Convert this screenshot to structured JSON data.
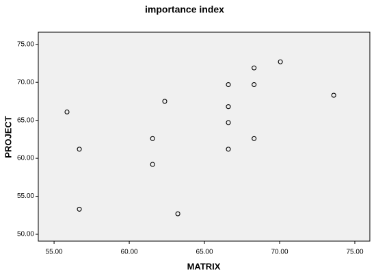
{
  "chart_data": {
    "type": "scatter",
    "title": "importance index",
    "x_label": "MATRIX",
    "y_label": "PROJECT",
    "x": [
      55.86,
      56.68,
      56.68,
      61.55,
      61.55,
      62.36,
      63.23,
      66.59,
      66.59,
      66.59,
      66.59,
      68.3,
      68.3,
      68.3,
      70.05,
      73.6
    ],
    "series": [
      {
        "color": "#000000",
        "values": [
          66.1,
          61.2,
          53.3,
          62.6,
          59.2,
          67.5,
          52.7,
          69.7,
          66.8,
          64.7,
          61.2,
          71.9,
          69.7,
          62.6,
          72.7,
          68.3
        ]
      }
    ],
    "xlim": [
      53.95,
      76
    ],
    "ylim": [
      49.1,
      76.6
    ],
    "xticks": [
      {
        "value": 55,
        "label": "55.00"
      },
      {
        "value": 60,
        "label": "60.00"
      },
      {
        "value": 65,
        "label": "65.00"
      },
      {
        "value": 70,
        "label": "70.00"
      },
      {
        "value": 75,
        "label": "75.00"
      }
    ],
    "yticks": [
      {
        "value": 50,
        "label": "50.00"
      },
      {
        "value": 55,
        "label": "55.00"
      },
      {
        "value": 60,
        "label": "60.00"
      },
      {
        "value": 65,
        "label": "65.00"
      },
      {
        "value": 70,
        "label": "70.00"
      },
      {
        "value": 75,
        "label": "75.00"
      }
    ]
  }
}
